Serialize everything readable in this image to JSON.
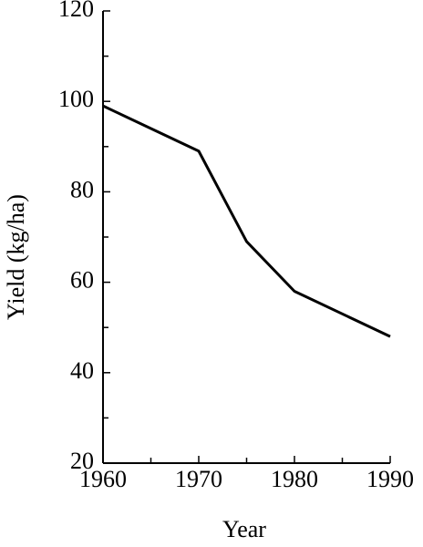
{
  "chart_data": {
    "type": "line",
    "x_label": "Year",
    "y_label": "Yield (kg/ha)",
    "x": [
      1960,
      1970,
      1975,
      1980,
      1990
    ],
    "series": [
      {
        "name": "Yield",
        "color": "#000000",
        "values": [
          99,
          89,
          69,
          58,
          48
        ]
      }
    ],
    "xlim": [
      1960,
      1990
    ],
    "xticks": [
      1960,
      1970,
      1980,
      1990
    ],
    "xminorticks": [
      1965,
      1975,
      1985
    ],
    "ylim": [
      20,
      120
    ],
    "yticks": [
      20,
      40,
      60,
      80,
      100,
      120
    ],
    "yminorticks": [
      30,
      50,
      70,
      90,
      110
    ],
    "grid": false
  }
}
